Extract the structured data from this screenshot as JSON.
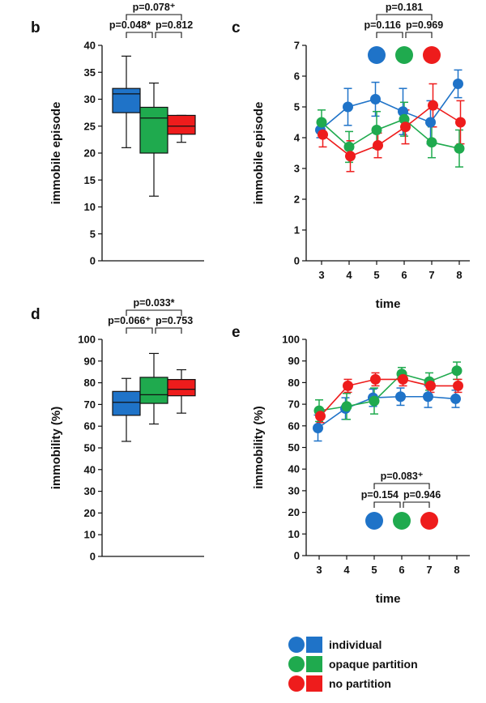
{
  "colors": {
    "individual": "#1f73c8",
    "opaque": "#1faa4e",
    "nopartition": "#ee1c1c"
  },
  "chart_data": [
    {
      "panel": "b",
      "type": "box",
      "ylabel": "immobile episode",
      "ylim": [
        0,
        40
      ],
      "yticks": [
        0,
        5,
        10,
        15,
        20,
        25,
        30,
        35,
        40
      ],
      "groups": [
        {
          "key": "individual",
          "min": 21,
          "q1": 27.5,
          "median": 31,
          "q3": 32,
          "max": 38
        },
        {
          "key": "opaque",
          "min": 12,
          "q1": 20,
          "median": 26.5,
          "q3": 28.5,
          "max": 33
        },
        {
          "key": "nopartition",
          "min": 22,
          "q1": 23.5,
          "median": 25,
          "q3": 27,
          "max": 27
        }
      ],
      "pvalues": {
        "top": "p=0.078⁺",
        "left": "p=0.048*",
        "right": "p=0.812"
      }
    },
    {
      "panel": "c",
      "type": "line",
      "xlabel": "time",
      "ylabel": "immobile episode",
      "x": [
        3,
        4,
        5,
        6,
        7,
        8
      ],
      "ylim": [
        0,
        7
      ],
      "yticks": [
        0,
        1,
        2,
        3,
        4,
        5,
        6,
        7
      ],
      "series": [
        {
          "key": "individual",
          "values": [
            4.25,
            5.0,
            5.25,
            4.85,
            4.5,
            5.75
          ],
          "err": [
            0.25,
            0.6,
            0.55,
            0.75,
            0.7,
            0.45
          ]
        },
        {
          "key": "opaque",
          "values": [
            4.5,
            3.7,
            4.25,
            4.6,
            3.85,
            3.65
          ],
          "err": [
            0.4,
            0.5,
            0.6,
            0.55,
            0.5,
            0.6
          ]
        },
        {
          "key": "nopartition",
          "values": [
            4.1,
            3.4,
            3.75,
            4.35,
            5.05,
            4.5
          ],
          "err": [
            0.4,
            0.5,
            0.4,
            0.55,
            0.7,
            0.7
          ]
        }
      ],
      "pvalues": {
        "top": "p=0.181",
        "left": "p=0.116",
        "right": "p=0.969"
      }
    },
    {
      "panel": "d",
      "type": "box",
      "ylabel": "immobility (%)",
      "ylim": [
        0,
        100
      ],
      "yticks": [
        0,
        10,
        20,
        30,
        40,
        50,
        60,
        70,
        80,
        90,
        100
      ],
      "groups": [
        {
          "key": "individual",
          "min": 53,
          "q1": 65,
          "median": 71,
          "q3": 76,
          "max": 82
        },
        {
          "key": "opaque",
          "min": 61,
          "q1": 70.5,
          "median": 74.5,
          "q3": 82.5,
          "max": 93.5
        },
        {
          "key": "nopartition",
          "min": 66,
          "q1": 74,
          "median": 77,
          "q3": 81.5,
          "max": 86
        }
      ],
      "pvalues": {
        "top": "p=0.033*",
        "left": "p=0.066⁺",
        "right": "p=0.753"
      }
    },
    {
      "panel": "e",
      "type": "line",
      "xlabel": "time",
      "ylabel": "immobility (%)",
      "x": [
        3,
        4,
        5,
        6,
        7,
        8
      ],
      "ylim": [
        0,
        100
      ],
      "yticks": [
        0,
        10,
        20,
        30,
        40,
        50,
        60,
        70,
        80,
        90,
        100
      ],
      "series": [
        {
          "key": "individual",
          "values": [
            59,
            68,
            73,
            73.5,
            73.5,
            72.5
          ],
          "err": [
            6,
            5,
            4,
            4,
            5,
            4
          ]
        },
        {
          "key": "opaque",
          "values": [
            67,
            69,
            71.5,
            84,
            80.5,
            85.5
          ],
          "err": [
            5,
            6,
            6,
            3,
            4,
            4
          ]
        },
        {
          "key": "nopartition",
          "values": [
            64.5,
            78.5,
            81.5,
            81.5,
            78.5,
            78.5
          ],
          "err": [
            3,
            3,
            3,
            3,
            3,
            3
          ]
        }
      ],
      "pvalues": {
        "top": "p=0.083⁺",
        "left": "p=0.154",
        "right": "p=0.946"
      }
    }
  ],
  "legend": [
    {
      "key": "individual",
      "label": "individual"
    },
    {
      "key": "opaque",
      "label": "opaque partition"
    },
    {
      "key": "nopartition",
      "label": "no partition"
    }
  ]
}
